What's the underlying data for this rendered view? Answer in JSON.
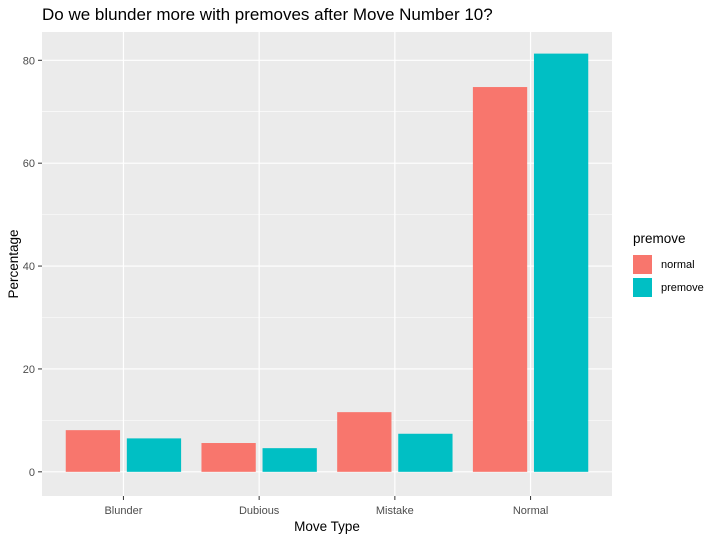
{
  "chart_data": {
    "type": "bar",
    "title": "Do we blunder more with premoves after Move Number 10?",
    "xlabel": "Move Type",
    "ylabel": "Percentage",
    "categories": [
      "Blunder",
      "Dubious",
      "Mistake",
      "Normal"
    ],
    "series": [
      {
        "name": "normal",
        "color": "#F8766D",
        "values": [
          8.1,
          5.6,
          11.6,
          74.8
        ]
      },
      {
        "name": "premove",
        "color": "#00BFC4",
        "values": [
          6.5,
          4.6,
          7.4,
          81.3
        ]
      }
    ],
    "ylim": [
      -4.7,
      85.5
    ],
    "yticks": [
      0,
      20,
      40,
      60,
      80
    ],
    "grid": true,
    "legend": {
      "title": "premove",
      "position": "right"
    }
  }
}
